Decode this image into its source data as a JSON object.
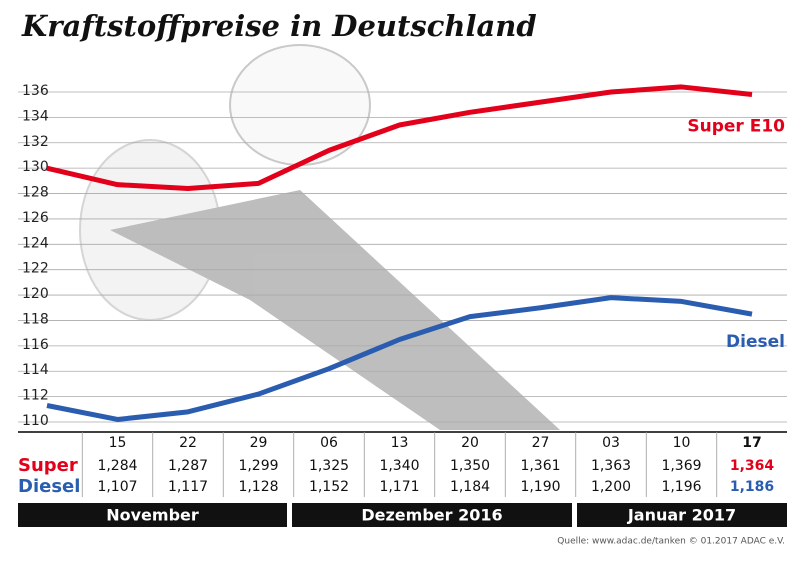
{
  "chart_data": {
    "type": "line",
    "title": "Kraftstoffpreise in Deutschland",
    "categories": [
      null,
      "15",
      "22",
      "29",
      "06",
      "13",
      "20",
      "27",
      "03",
      "10",
      "17"
    ],
    "series": [
      {
        "name": "Super E10",
        "color": "#e2001a",
        "values": [
          130.0,
          128.7,
          128.4,
          128.8,
          131.4,
          133.4,
          134.4,
          135.2,
          136.0,
          136.4,
          135.8
        ]
      },
      {
        "name": "Diesel",
        "color": "#2a5db0",
        "values": [
          111.3,
          110.2,
          110.8,
          112.2,
          114.2,
          116.5,
          118.3,
          119.0,
          119.8,
          119.5,
          118.5
        ]
      }
    ],
    "ylim": [
      110,
      136
    ],
    "yticks": [
      110,
      112,
      114,
      116,
      118,
      120,
      122,
      124,
      126,
      128,
      130,
      132,
      134,
      136
    ],
    "grid": true,
    "table": {
      "row_labels": [
        "Super",
        "Diesel"
      ],
      "rows": [
        [
          "1,284",
          "1,287",
          "1,299",
          "1,325",
          "1,340",
          "1,350",
          "1,361",
          "1,363",
          "1,369",
          "1,364"
        ],
        [
          "1,107",
          "1,117",
          "1,128",
          "1,152",
          "1,171",
          "1,184",
          "1,190",
          "1,200",
          "1,196",
          "1,186"
        ]
      ]
    },
    "months": [
      "November",
      "Dezember 2016",
      "Januar 2017"
    ],
    "source": "Quelle: www.adac.de/tanken  © 01.2017  ADAC e.V."
  }
}
